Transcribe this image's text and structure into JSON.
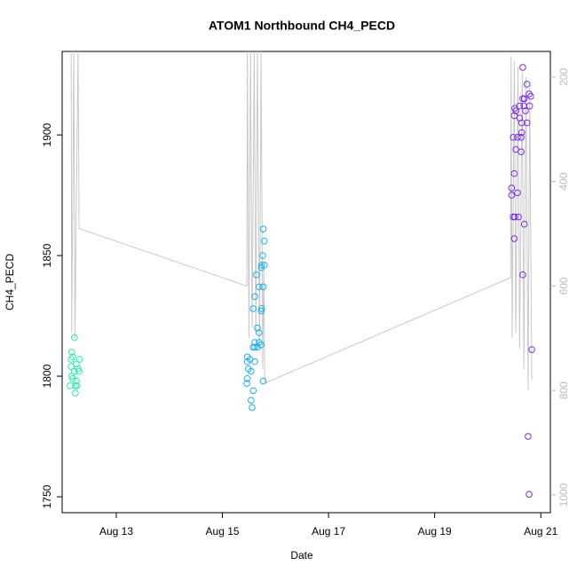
{
  "chart_data": {
    "type": "scatter",
    "title": "ATOM1 Northbound CH4_PECD",
    "x_label": "Date",
    "y_label": "CH4_PECD",
    "xlim": [
      11.98,
      21.18
    ],
    "xticks": [
      {
        "value": 13,
        "label": "Aug 13"
      },
      {
        "value": 15,
        "label": "Aug 15"
      },
      {
        "value": 17,
        "label": "Aug 17"
      },
      {
        "value": 19,
        "label": "Aug 19"
      },
      {
        "value": 21,
        "label": "Aug 21"
      }
    ],
    "ylim": [
      1743.4,
      1934.6
    ],
    "yticks": [
      1750,
      1800,
      1850,
      1900
    ],
    "y2lim": [
      1034,
      151
    ],
    "y2ticks": [
      200,
      400,
      600,
      800,
      1000
    ],
    "series": [
      {
        "color": "#2ee8b0",
        "x": [
          12.21,
          12.16,
          12.18,
          12.15,
          12.31,
          12.25,
          12.15,
          12.28,
          12.21,
          12.3,
          12.16,
          12.18,
          12.25,
          12.26,
          12.13,
          12.23,
          12.23
        ],
        "values": [
          1816,
          1810,
          1808,
          1807,
          1807,
          1805,
          1804,
          1803,
          1802,
          1802,
          1800,
          1799,
          1798,
          1796,
          1796,
          1796,
          1793
        ]
      },
      {
        "color": "#1ab0ee",
        "x": [
          15.77,
          15.79,
          15.76,
          15.79,
          15.74,
          15.73,
          15.64,
          15.77,
          15.69,
          15.74,
          15.58,
          15.73,
          15.61,
          15.66,
          15.69,
          15.61,
          15.69,
          15.66,
          15.73,
          15.61,
          15.58,
          15.47,
          15.52,
          15.47,
          15.61,
          15.49,
          15.54,
          15.47,
          15.46,
          15.77,
          15.58,
          15.54,
          15.56
        ],
        "values": [
          1861,
          1856,
          1850,
          1846,
          1846,
          1845,
          1842,
          1837,
          1837,
          1828,
          1828,
          1827,
          1833,
          1820,
          1818,
          1814,
          1814,
          1812,
          1813,
          1812,
          1812,
          1808,
          1807,
          1806,
          1806,
          1803,
          1802,
          1799,
          1797,
          1798,
          1794,
          1790,
          1787
        ]
      },
      {
        "color": "#7a2ee8",
        "x": [
          20.66,
          20.74,
          20.78,
          20.81,
          20.69,
          20.66,
          20.79,
          20.6,
          20.51,
          20.68,
          20.53,
          20.71,
          20.6,
          20.64,
          20.74,
          20.5,
          20.56,
          20.64,
          20.63,
          20.48,
          20.53,
          20.63,
          20.5,
          20.45,
          20.56,
          20.45,
          20.48,
          20.51,
          20.58,
          20.69,
          20.5,
          20.66,
          20.83,
          20.76,
          20.78
        ],
        "values": [
          1928,
          1921,
          1917,
          1916,
          1915,
          1915,
          1912,
          1912,
          1911,
          1912,
          1910,
          1910,
          1907,
          1905,
          1905,
          1908,
          1899,
          1901,
          1899,
          1899,
          1894,
          1893,
          1884,
          1878,
          1876,
          1875,
          1866,
          1866,
          1866,
          1863,
          1857,
          1842,
          1811,
          1775,
          1751
        ]
      },
      {
        "color": "#c8c8c8",
        "axis": "y2",
        "x": [
          12.15,
          12.16,
          12.2,
          12.22,
          12.28,
          12.3,
          15.46,
          15.47,
          15.5,
          15.53,
          15.56,
          15.6,
          15.63,
          15.66,
          15.7,
          15.73,
          15.76,
          15.78,
          15.8,
          20.43,
          20.44,
          20.46,
          20.5,
          20.53,
          20.57,
          20.6,
          20.65,
          20.68,
          20.72,
          20.76,
          20.79,
          20.83
        ],
        "values": [
          151,
          690,
          151,
          700,
          151,
          490,
          600,
          151,
          700,
          151,
          680,
          151,
          690,
          151,
          720,
          151,
          760,
          560,
          786,
          584,
          160,
          700,
          170,
          690,
          180,
          720,
          190,
          760,
          200,
          800,
          220,
          780
        ]
      }
    ]
  }
}
